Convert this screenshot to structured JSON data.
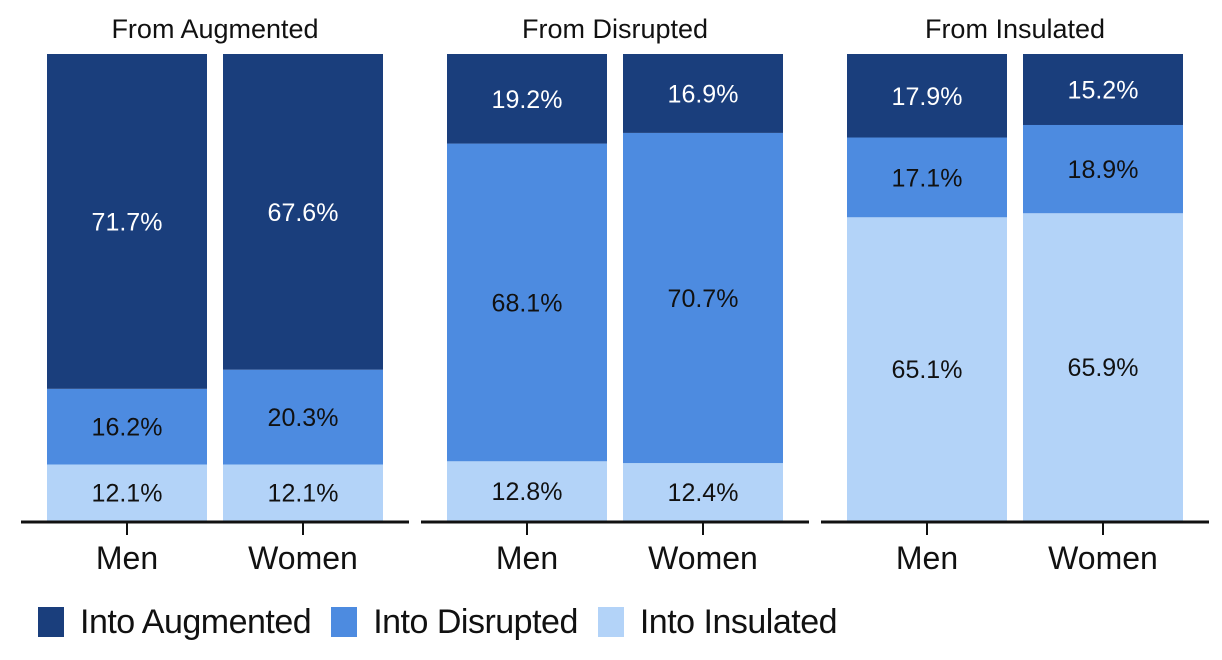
{
  "colors": {
    "augmented": "#1a3e7c",
    "disrupted": "#4d8be0",
    "insulated": "#b3d3f8",
    "axis": "#111111",
    "text_dark": "#111111",
    "text_light": "#ffffff"
  },
  "legend": [
    {
      "key": "augmented",
      "label": "Into Augmented"
    },
    {
      "key": "disrupted",
      "label": "Into Disrupted"
    },
    {
      "key": "insulated",
      "label": "Into Insulated"
    }
  ],
  "chart_data": {
    "type": "bar",
    "stacked": true,
    "ylim": [
      0,
      100
    ],
    "grid": false,
    "legend_position": "bottom-left",
    "series_names": [
      "Into Insulated",
      "Into Disrupted",
      "Into Augmented"
    ],
    "panels": [
      {
        "title": "From Augmented",
        "categories": [
          "Men",
          "Women"
        ],
        "series": [
          {
            "name": "Into Insulated",
            "key": "insulated",
            "values": [
              12.1,
              12.1
            ],
            "labels": [
              "12.1%",
              "12.1%"
            ]
          },
          {
            "name": "Into Disrupted",
            "key": "disrupted",
            "values": [
              16.2,
              20.3
            ],
            "labels": [
              "16.2%",
              "20.3%"
            ]
          },
          {
            "name": "Into Augmented",
            "key": "augmented",
            "values": [
              71.7,
              67.6
            ],
            "labels": [
              "71.7%",
              "67.6%"
            ]
          }
        ]
      },
      {
        "title": "From Disrupted",
        "categories": [
          "Men",
          "Women"
        ],
        "series": [
          {
            "name": "Into Insulated",
            "key": "insulated",
            "values": [
              12.8,
              12.4
            ],
            "labels": [
              "12.8%",
              "12.4%"
            ]
          },
          {
            "name": "Into Disrupted",
            "key": "disrupted",
            "values": [
              68.1,
              70.7
            ],
            "labels": [
              "68.1%",
              "70.7%"
            ]
          },
          {
            "name": "Into Augmented",
            "key": "augmented",
            "values": [
              19.2,
              16.9
            ],
            "labels": [
              "19.2%",
              "16.9%"
            ]
          }
        ]
      },
      {
        "title": "From Insulated",
        "categories": [
          "Men",
          "Women"
        ],
        "series": [
          {
            "name": "Into Insulated",
            "key": "insulated",
            "values": [
              65.1,
              65.9
            ],
            "labels": [
              "65.1%",
              "65.9%"
            ]
          },
          {
            "name": "Into Disrupted",
            "key": "disrupted",
            "values": [
              17.1,
              18.9
            ],
            "labels": [
              "17.1%",
              "18.9%"
            ]
          },
          {
            "name": "Into Augmented",
            "key": "augmented",
            "values": [
              17.9,
              15.2
            ],
            "labels": [
              "17.9%",
              "15.2%"
            ]
          }
        ]
      }
    ]
  }
}
